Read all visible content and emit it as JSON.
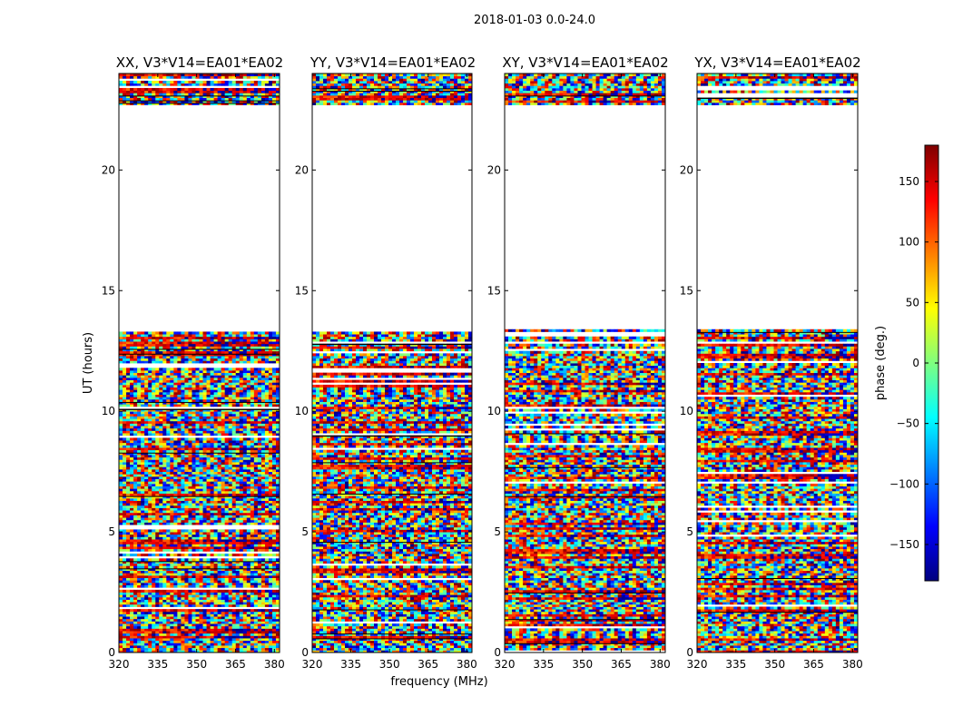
{
  "figure_title": "2018-01-03 0.0-24.0",
  "chart_data": [
    {
      "type": "heatmap",
      "title": "XX, V3*V14=EA01*EA02",
      "ylabel": "UT (hours)",
      "xlabel": "",
      "xlim": [
        320,
        382
      ],
      "ylim": [
        0,
        24
      ],
      "xticks": [
        320,
        335,
        350,
        365,
        380
      ],
      "yticks": [
        0,
        5,
        10,
        15,
        20
      ],
      "data_rows_hours": [
        [
          0,
          13.4
        ],
        [
          22.7,
          24
        ]
      ],
      "gap_hours": [
        13.4,
        22.7
      ],
      "value": "phase (deg.)"
    },
    {
      "type": "heatmap",
      "title": "YY, V3*V14=EA01*EA02",
      "ylabel": "",
      "xlabel": "frequency (MHz)",
      "xlim": [
        320,
        382
      ],
      "ylim": [
        0,
        24
      ],
      "xticks": [
        320,
        335,
        350,
        365,
        380
      ],
      "yticks": [
        0,
        5,
        10,
        15,
        20
      ],
      "data_rows_hours": [
        [
          0,
          13.4
        ],
        [
          22.7,
          24
        ]
      ],
      "gap_hours": [
        13.4,
        22.7
      ],
      "value": "phase (deg.)"
    },
    {
      "type": "heatmap",
      "title": "XY, V3*V14=EA01*EA02",
      "ylabel": "",
      "xlabel": "",
      "xlim": [
        320,
        382
      ],
      "ylim": [
        0,
        24
      ],
      "xticks": [
        320,
        335,
        350,
        365,
        380
      ],
      "yticks": [
        0,
        5,
        10,
        15,
        20
      ],
      "data_rows_hours": [
        [
          0,
          13.4
        ],
        [
          22.7,
          24
        ]
      ],
      "gap_hours": [
        13.4,
        22.7
      ],
      "value": "phase (deg.)"
    },
    {
      "type": "heatmap",
      "title": "YX, V3*V14=EA01*EA02",
      "ylabel": "",
      "xlabel": "",
      "xlim": [
        320,
        382
      ],
      "ylim": [
        0,
        24
      ],
      "xticks": [
        320,
        335,
        350,
        365,
        380
      ],
      "yticks": [
        0,
        5,
        10,
        15,
        20
      ],
      "data_rows_hours": [
        [
          0,
          13.4
        ],
        [
          22.7,
          24
        ]
      ],
      "gap_hours": [
        13.4,
        22.7
      ],
      "value": "phase (deg.)"
    }
  ],
  "colorbar": {
    "label": "phase (deg.)",
    "range": [
      -180,
      180
    ],
    "ticks": [
      150,
      100,
      50,
      0,
      -50,
      -100,
      -150
    ],
    "tick_labels": [
      "150",
      "100",
      "50",
      "0",
      "−50",
      "−100",
      "−150"
    ],
    "colormap": "jet",
    "colors": [
      "#00007f",
      "#0000ff",
      "#007fff",
      "#00ffff",
      "#7fff7f",
      "#ffff00",
      "#ff7f00",
      "#ff0000",
      "#7f0000"
    ]
  }
}
